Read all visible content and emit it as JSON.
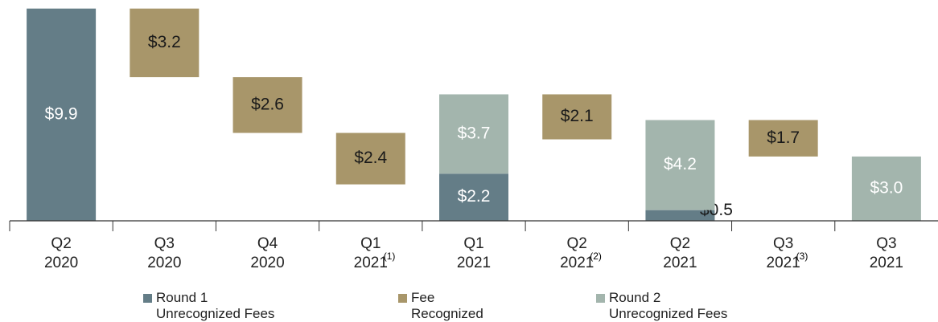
{
  "chart_data": {
    "type": "waterfall",
    "categories": [
      "Q2\n2020",
      "Q3\n2020",
      "Q4\n2020",
      "Q1\n2021",
      "Q1\n2021",
      "Q2\n2021",
      "Q2\n2021",
      "Q3\n2021",
      "Q3\n2021"
    ],
    "footnotes": [
      null,
      null,
      null,
      "(1)",
      null,
      "(2)",
      null,
      "(3)",
      null
    ],
    "series": [
      {
        "name": "Round 1\nUnrecognized Fees",
        "color": "#647d87",
        "values": [
          9.9,
          null,
          null,
          null,
          2.2,
          null,
          0.5,
          null,
          null
        ],
        "value_labels": [
          "$9.9",
          null,
          null,
          null,
          "$2.2",
          null,
          "$0.5",
          null,
          null
        ]
      },
      {
        "name": "Fee\nRecognized",
        "color": "#a8966a",
        "values": [
          null,
          3.2,
          2.6,
          2.4,
          null,
          2.1,
          null,
          1.7,
          null
        ],
        "value_labels": [
          null,
          "$3.2",
          "$2.6",
          "$2.4",
          null,
          "$2.1",
          null,
          "$1.7",
          null
        ]
      },
      {
        "name": "Round 2\nUnrecognized Fees",
        "color": "#a3b5ad",
        "values": [
          null,
          null,
          null,
          null,
          3.7,
          null,
          4.2,
          null,
          3.0
        ],
        "value_labels": [
          null,
          null,
          null,
          null,
          "$3.7",
          null,
          "$4.2",
          null,
          "$3.0"
        ]
      }
    ],
    "ylim": [
      0,
      10
    ]
  }
}
